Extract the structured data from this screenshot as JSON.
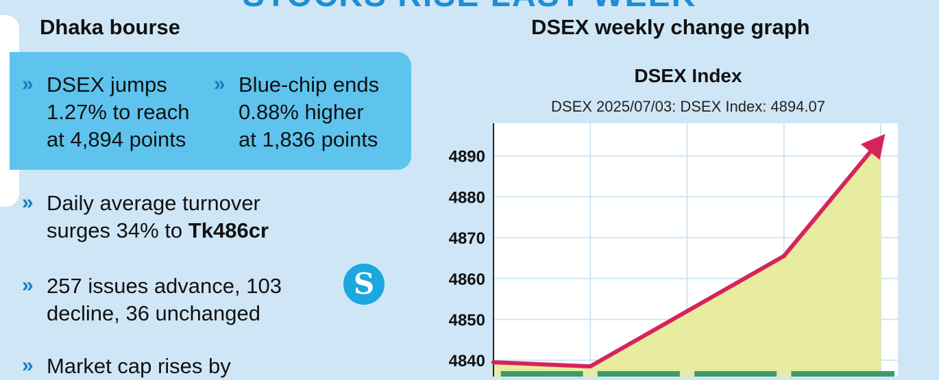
{
  "banner": "STOCKS RISE LAST WEEK",
  "left": {
    "heading": "Dhaka bourse",
    "box_bullets": [
      {
        "text": "DSEX jumps\n1.27% to reach\nat 4,894 points"
      },
      {
        "text": "Blue-chip ends\n0.88% higher\nat 1,836 points"
      }
    ],
    "bullets": [
      {
        "text": "Daily average turnover\nsurges 34% to ",
        "bold": "Tk486cr"
      },
      {
        "text": "257 issues advance, 103\ndecline, 36 unchanged",
        "bold": ""
      },
      {
        "text": "Market cap rises by",
        "bold": ""
      }
    ],
    "logo_letter": "S"
  },
  "chart_heading": "DSEX weekly change graph",
  "chart_data": {
    "type": "area",
    "title": "DSEX Index",
    "subtitle": "DSEX 2025/07/03: DSEX Index: 4894.07",
    "ylim": [
      4836,
      4898
    ],
    "y_ticks": [
      "4890",
      "4880",
      "4870",
      "4860",
      "4850",
      "4840"
    ],
    "y_tick_values": [
      4890,
      4880,
      4870,
      4860,
      4850,
      4840
    ],
    "series": [
      {
        "values": [
          4839.5,
          4838.5,
          4852.0,
          4865.5,
          4894.07
        ]
      }
    ],
    "colors": {
      "line": "#d6245a",
      "fill": "#e8eca0",
      "bar": "#3f9b6a",
      "grid": "#cfe6f6"
    }
  }
}
